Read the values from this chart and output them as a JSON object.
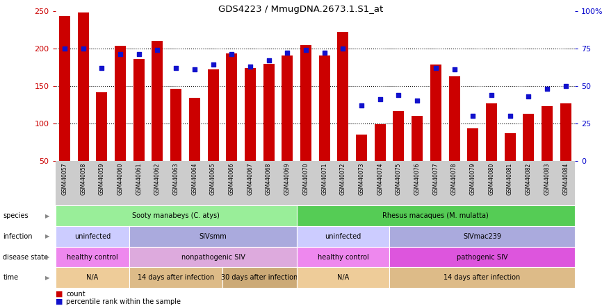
{
  "title": "GDS4223 / MmugDNA.2673.1.S1_at",
  "samples": [
    "GSM440057",
    "GSM440058",
    "GSM440059",
    "GSM440060",
    "GSM440061",
    "GSM440062",
    "GSM440063",
    "GSM440064",
    "GSM440065",
    "GSM440066",
    "GSM440067",
    "GSM440068",
    "GSM440069",
    "GSM440070",
    "GSM440071",
    "GSM440072",
    "GSM440073",
    "GSM440074",
    "GSM440075",
    "GSM440076",
    "GSM440077",
    "GSM440078",
    "GSM440079",
    "GSM440080",
    "GSM440081",
    "GSM440082",
    "GSM440083",
    "GSM440084"
  ],
  "counts": [
    243,
    248,
    141,
    203,
    186,
    210,
    146,
    134,
    172,
    193,
    174,
    179,
    190,
    204,
    190,
    222,
    85,
    99,
    116,
    110,
    178,
    163,
    93,
    127,
    87,
    113,
    123,
    127
  ],
  "percentile_ranks": [
    75,
    75,
    62,
    71,
    71,
    74,
    62,
    61,
    64,
    71,
    63,
    67,
    72,
    74,
    72,
    75,
    37,
    41,
    44,
    40,
    62,
    61,
    30,
    44,
    30,
    43,
    48,
    50
  ],
  "ylim_left": [
    50,
    250
  ],
  "ylim_right": [
    0,
    100
  ],
  "yticks_left": [
    50,
    100,
    150,
    200,
    250
  ],
  "yticks_right": [
    0,
    25,
    50,
    75,
    100
  ],
  "bar_color": "#cc0000",
  "dot_color": "#1111cc",
  "bg_color": "#ffffff",
  "axis_color_left": "#cc0000",
  "axis_color_right": "#0000cc",
  "metadata_rows": [
    {
      "label": "species",
      "segments": [
        {
          "text": "Sooty manabeys (C. atys)",
          "start": 0,
          "end": 13,
          "color": "#99ee99"
        },
        {
          "text": "Rhesus macaques (M. mulatta)",
          "start": 13,
          "end": 28,
          "color": "#55cc55"
        }
      ]
    },
    {
      "label": "infection",
      "segments": [
        {
          "text": "uninfected",
          "start": 0,
          "end": 4,
          "color": "#ccccff"
        },
        {
          "text": "SIVsmm",
          "start": 4,
          "end": 13,
          "color": "#aaaadd"
        },
        {
          "text": "uninfected",
          "start": 13,
          "end": 18,
          "color": "#ccccff"
        },
        {
          "text": "SIVmac239",
          "start": 18,
          "end": 28,
          "color": "#aaaadd"
        }
      ]
    },
    {
      "label": "disease state",
      "segments": [
        {
          "text": "healthy control",
          "start": 0,
          "end": 4,
          "color": "#ee88ee"
        },
        {
          "text": "nonpathogenic SIV",
          "start": 4,
          "end": 13,
          "color": "#ddaadd"
        },
        {
          "text": "healthy control",
          "start": 13,
          "end": 18,
          "color": "#ee88ee"
        },
        {
          "text": "pathogenic SIV",
          "start": 18,
          "end": 28,
          "color": "#dd55dd"
        }
      ]
    },
    {
      "label": "time",
      "segments": [
        {
          "text": "N/A",
          "start": 0,
          "end": 4,
          "color": "#eecc99"
        },
        {
          "text": "14 days after infection",
          "start": 4,
          "end": 9,
          "color": "#ddbb88"
        },
        {
          "text": "30 days after infection",
          "start": 9,
          "end": 13,
          "color": "#ccaa77"
        },
        {
          "text": "N/A",
          "start": 13,
          "end": 18,
          "color": "#eecc99"
        },
        {
          "text": "14 days after infection",
          "start": 18,
          "end": 28,
          "color": "#ddbb88"
        }
      ]
    }
  ]
}
